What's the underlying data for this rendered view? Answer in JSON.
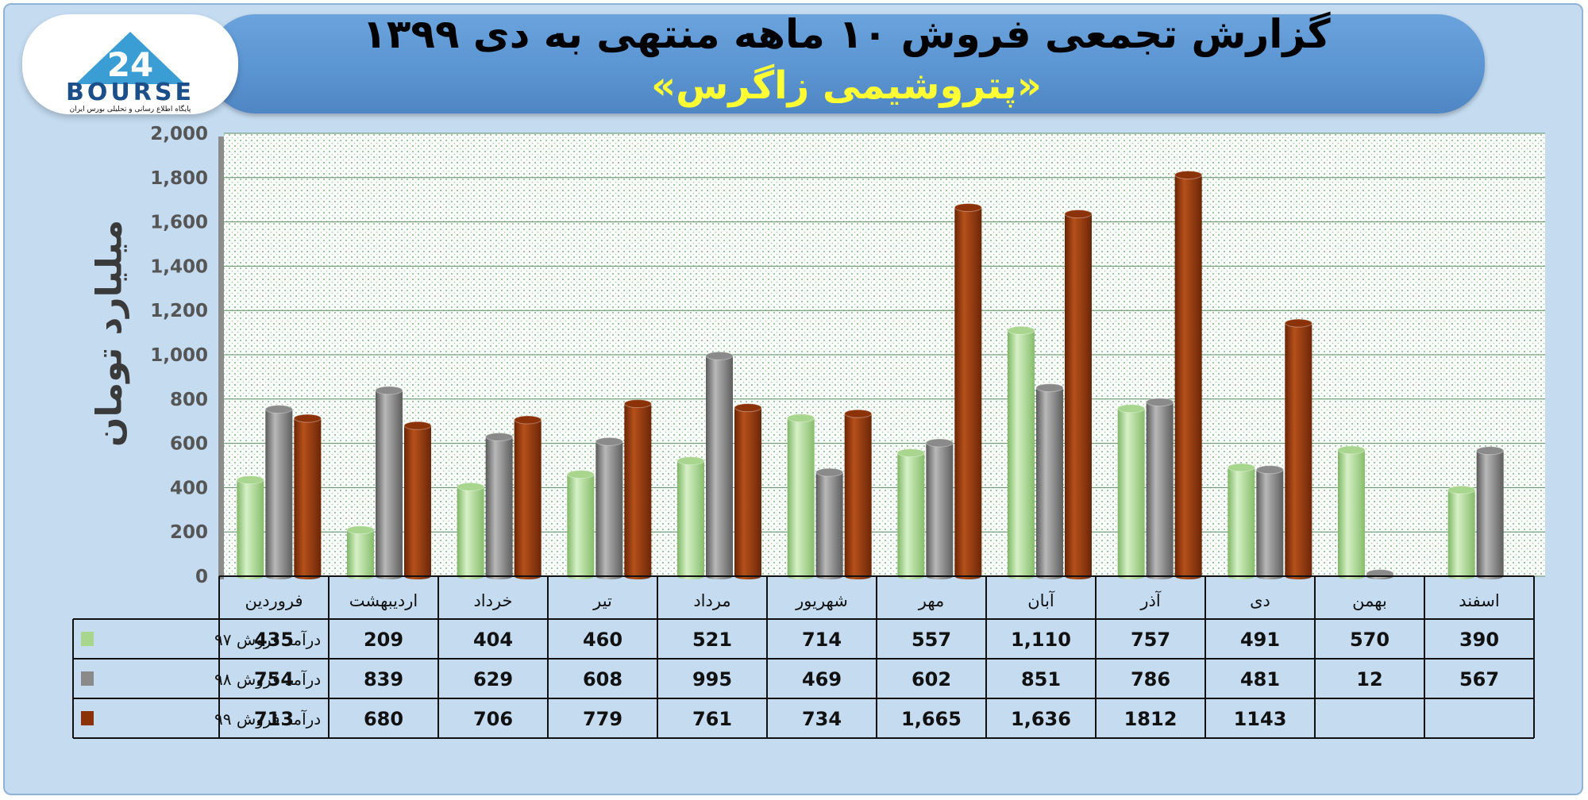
{
  "title": "گزارش تجمعی فروش ۱۰ ماهه منتهی به دی ۱۳۹۹",
  "subtitle": "«پتروشیمی زاگرس»",
  "logo": {
    "text": "BOURSE",
    "tagline": "پایگاه اطلاع رسانی و تحلیلی بورس ایران",
    "mark": "24"
  },
  "chart_data": {
    "type": "bar",
    "ylabel": "میلیارد تومان",
    "ylim": [
      0,
      2000
    ],
    "yticks": [
      "0",
      "200",
      "400",
      "600",
      "800",
      "1,000",
      "1,200",
      "1,400",
      "1,600",
      "1,800",
      "2,000"
    ],
    "grid": true,
    "categories": [
      "فروردین",
      "اردیبهشت",
      "خرداد",
      "تیر",
      "مرداد",
      "شهریور",
      "مهر",
      "آبان",
      "آذر",
      "دی",
      "بهمن",
      "اسفند"
    ],
    "series": [
      {
        "name": "درآمد فروش ۹۷",
        "color": "#a8d68e",
        "values": [
          435,
          209,
          404,
          460,
          521,
          714,
          557,
          1110,
          757,
          491,
          570,
          390
        ],
        "labels": [
          "435",
          "209",
          "404",
          "460",
          "521",
          "714",
          "557",
          "1,110",
          "757",
          "491",
          "570",
          "390"
        ]
      },
      {
        "name": "درآمد فروش ۹۸",
        "color": "#8a8a8a",
        "values": [
          754,
          839,
          629,
          608,
          995,
          469,
          602,
          851,
          786,
          481,
          12,
          567
        ],
        "labels": [
          "754",
          "839",
          "629",
          "608",
          "995",
          "469",
          "602",
          "851",
          "786",
          "481",
          "12",
          "567"
        ]
      },
      {
        "name": "درآمد فروش ۹۹",
        "color": "#8b3208",
        "values": [
          713,
          680,
          706,
          779,
          761,
          734,
          1665,
          1636,
          1812,
          1143,
          null,
          null
        ],
        "labels": [
          "713",
          "680",
          "706",
          "779",
          "761",
          "734",
          "1,665",
          "1,636",
          "1812",
          "1143",
          "",
          ""
        ]
      }
    ]
  }
}
